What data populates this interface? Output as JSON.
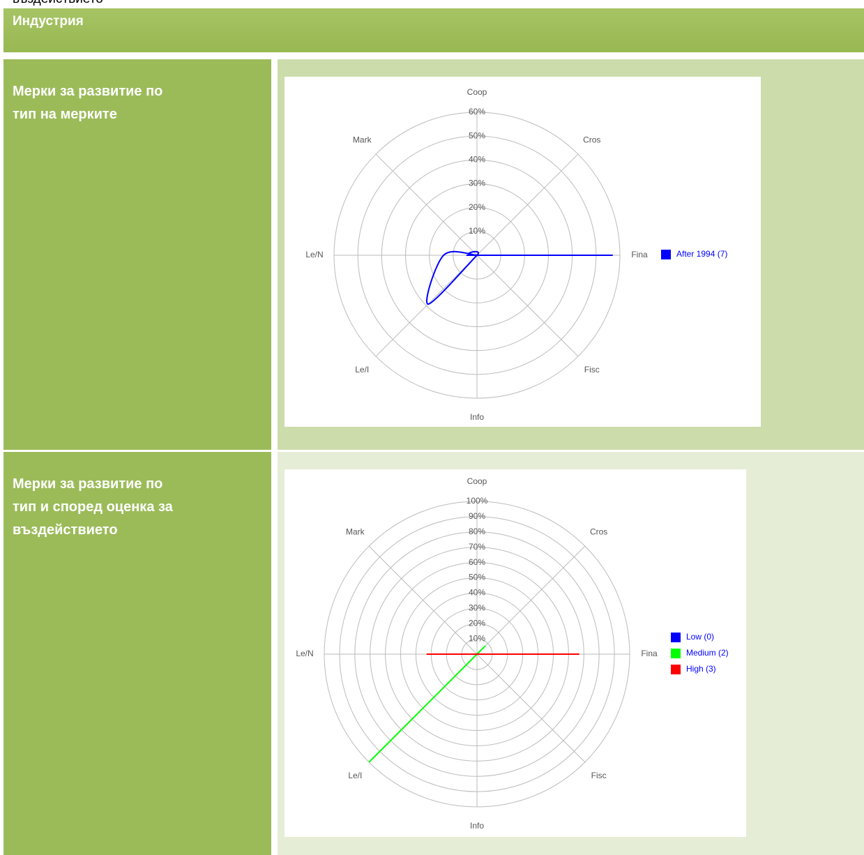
{
  "top_text": "въздействието",
  "header": "Индустрия",
  "row_labels": [
    "Мерки за развитие по тип на мерките",
    "Мерки за развитие по тип  и според оценка за въздействието"
  ],
  "chart_data": [
    {
      "type": "radar",
      "categories": [
        "Coop",
        "Cros",
        "Fina",
        "Fisc",
        "Info",
        "Le/I",
        "Le/N",
        "Mark"
      ],
      "series": [
        {
          "name": "After 1994 (7)",
          "color": "#0000ff",
          "values": [
            0,
            0,
            57,
            0,
            0,
            29,
            14,
            0
          ]
        }
      ],
      "ylim": [
        0,
        60
      ],
      "yticks": [
        {
          "value": 10,
          "label": "10%"
        },
        {
          "value": 20,
          "label": "20%"
        },
        {
          "value": 30,
          "label": "30%"
        },
        {
          "value": 40,
          "label": "40%"
        },
        {
          "value": 50,
          "label": "50%"
        },
        {
          "value": 60,
          "label": "60%"
        }
      ],
      "grid": true,
      "legend": "right"
    },
    {
      "type": "radar",
      "categories": [
        "Coop",
        "Cros",
        "Fina",
        "Fisc",
        "Info",
        "Le/I",
        "Le/N",
        "Mark"
      ],
      "series": [
        {
          "name": "Low (0)",
          "color": "#0000ff",
          "values": [
            0,
            0,
            0,
            0,
            0,
            0,
            0,
            0
          ]
        },
        {
          "name": "Medium (2)",
          "color": "#00ff00",
          "values": [
            0,
            0,
            0,
            0,
            0,
            100,
            0,
            0
          ]
        },
        {
          "name": "High (3)",
          "color": "#ff0000",
          "values": [
            0,
            0,
            67,
            0,
            0,
            0,
            33,
            0
          ]
        }
      ],
      "ylim": [
        0,
        100
      ],
      "yticks": [
        {
          "value": 10,
          "label": "10%"
        },
        {
          "value": 20,
          "label": "20%"
        },
        {
          "value": 30,
          "label": "30%"
        },
        {
          "value": 40,
          "label": "40%"
        },
        {
          "value": 50,
          "label": "50%"
        },
        {
          "value": 60,
          "label": "60%"
        },
        {
          "value": 70,
          "label": "70%"
        },
        {
          "value": 80,
          "label": "80%"
        },
        {
          "value": 90,
          "label": "90%"
        },
        {
          "value": 100,
          "label": "100%"
        }
      ],
      "grid": true,
      "legend": "right"
    }
  ]
}
